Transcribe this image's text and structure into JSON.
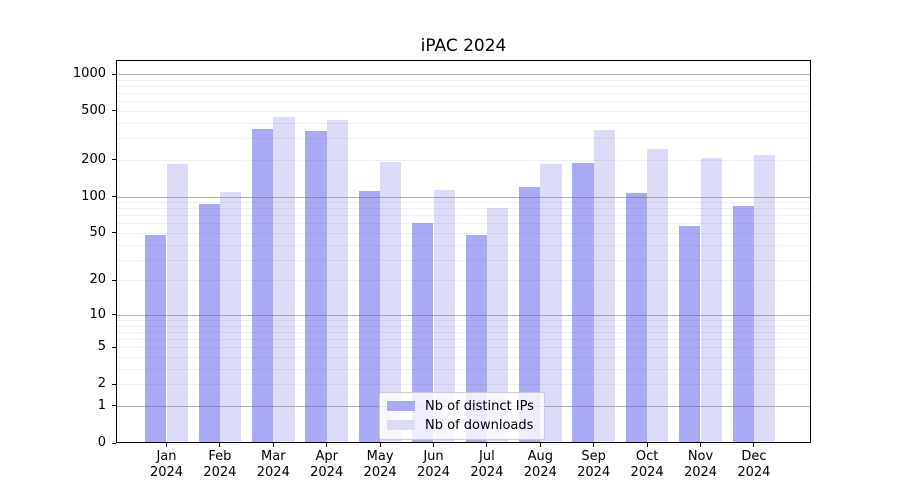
{
  "title": "iPAC 2024",
  "chart_data": {
    "type": "bar",
    "title": "iPAC 2024",
    "categories": [
      "Jan 2024",
      "Feb 2024",
      "Mar 2024",
      "Apr 2024",
      "May 2024",
      "Jun 2024",
      "Jul 2024",
      "Aug 2024",
      "Sep 2024",
      "Oct 2024",
      "Nov 2024",
      "Dec 2024"
    ],
    "months": [
      "Jan",
      "Feb",
      "Mar",
      "Apr",
      "May",
      "Jun",
      "Jul",
      "Aug",
      "Sep",
      "Oct",
      "Nov",
      "Dec"
    ],
    "year_label": "2024",
    "series": [
      {
        "name": "Nb of distinct IPs",
        "color": "#a9a9f5",
        "values": [
          48,
          86,
          355,
          345,
          111,
          61,
          48,
          119,
          189,
          107,
          57,
          83
        ]
      },
      {
        "name": "Nb of downloads",
        "color": "#dcdcf9",
        "values": [
          185,
          108,
          448,
          420,
          190,
          113,
          81,
          183,
          349,
          243,
          205,
          219
        ]
      }
    ],
    "y_ticks": [
      0,
      1,
      2,
      5,
      10,
      20,
      50,
      100,
      200,
      500,
      1000
    ],
    "y_scale": "log1p",
    "ylim": [
      0,
      1300
    ],
    "grid": "both",
    "legend_position": "lower-center",
    "colors": {
      "grid_major": "#b0b0b0",
      "grid_minor": "#e9e9e9",
      "axis": "#000000",
      "background": "#ffffff",
      "legend_border": "#cccccc"
    }
  }
}
